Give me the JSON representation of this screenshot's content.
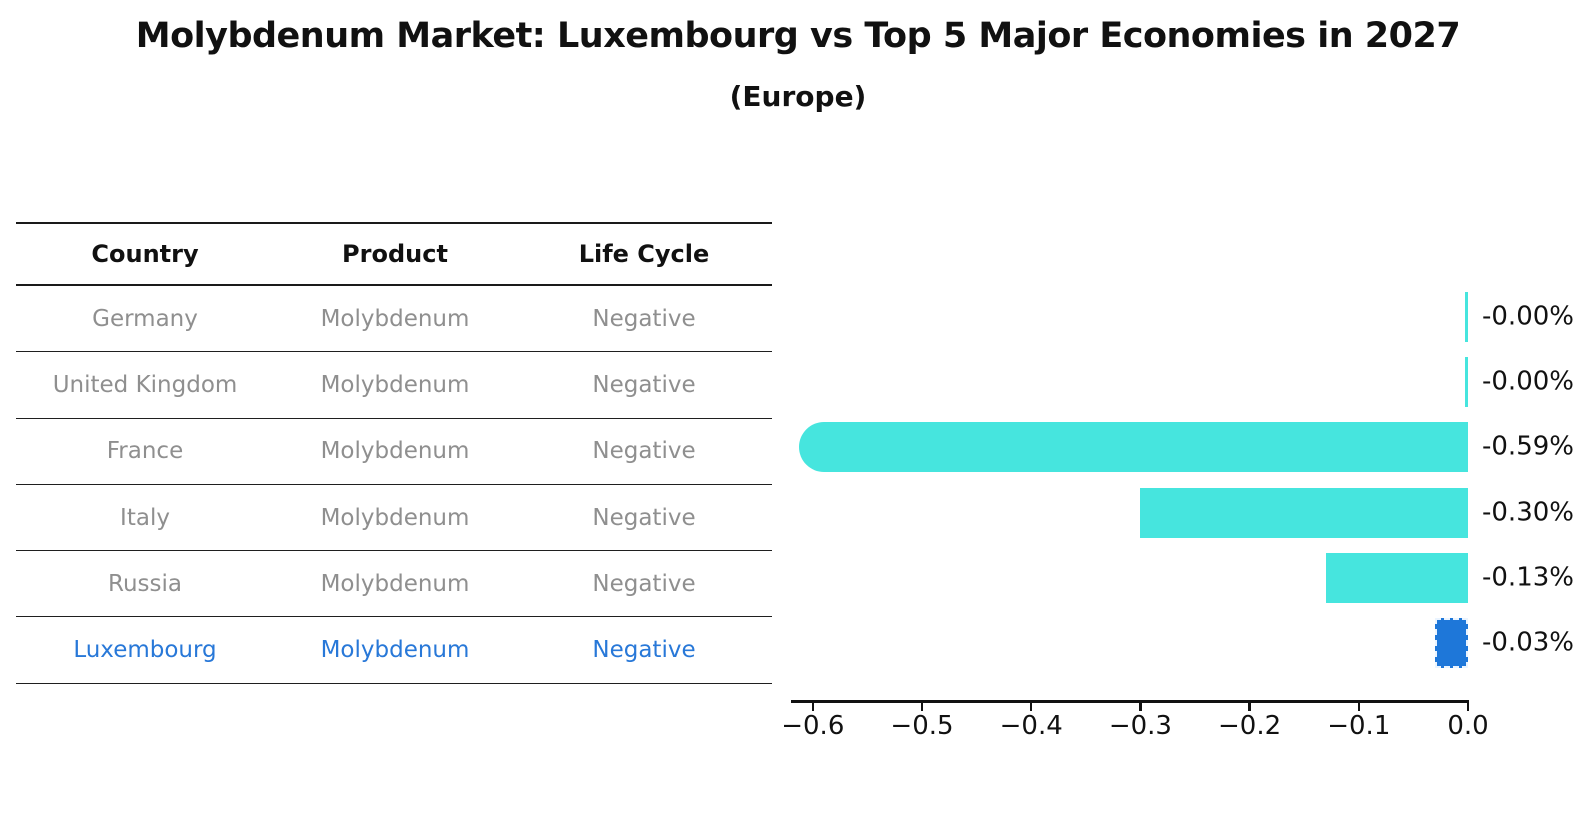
{
  "title": "Molybdenum Market: Luxembourg vs Top 5 Major Economies in 2027",
  "subtitle": "(Europe)",
  "table": {
    "headers": [
      "Country",
      "Product",
      "Life Cycle"
    ],
    "rows": [
      {
        "country": "Germany",
        "product": "Molybdenum",
        "life_cycle": "Negative",
        "highlight": false
      },
      {
        "country": "United Kingdom",
        "product": "Molybdenum",
        "life_cycle": "Negative",
        "highlight": false
      },
      {
        "country": "France",
        "product": "Molybdenum",
        "life_cycle": "Negative",
        "highlight": false
      },
      {
        "country": "Italy",
        "product": "Molybdenum",
        "life_cycle": "Negative",
        "highlight": false
      },
      {
        "country": "Russia",
        "product": "Molybdenum",
        "life_cycle": "Negative",
        "highlight": true
      }
    ],
    "note_last_row": {
      "country": "Luxembourg",
      "product": "Molybdenum",
      "life_cycle": "Negative"
    }
  },
  "chart_data": {
    "type": "bar",
    "orientation": "horizontal",
    "title": "Molybdenum Market: Luxembourg vs Top 5 Major Economies in 2027 (Europe)",
    "categories": [
      "Germany",
      "United Kingdom",
      "France",
      "Italy",
      "Russia",
      "Luxembourg"
    ],
    "values": [
      -0.0,
      -0.0,
      -0.59,
      -0.3,
      -0.13,
      -0.03
    ],
    "bar_labels": [
      "-0.00%",
      "-0.00%",
      "-0.59%",
      "-0.30%",
      "-0.13%",
      "-0.03%"
    ],
    "x_tick_values": [
      -0.6,
      -0.5,
      -0.4,
      -0.3,
      -0.2,
      -0.1,
      0.0
    ],
    "x_tick_labels": [
      "−0.6",
      "−0.5",
      "−0.4",
      "−0.3",
      "−0.2",
      "−0.1",
      "0.0"
    ],
    "xlim": [
      -0.62,
      0.0
    ],
    "grid": false,
    "legend_position": "none",
    "highlight_index": 5,
    "rounded_cap_index": 2,
    "bar_color": "#46e5de",
    "highlight_bar_color": "#1e77d9",
    "highlight_text_color": "#2878d8",
    "row_text_color": "#8f8f8f",
    "axis_color": "#111111"
  }
}
